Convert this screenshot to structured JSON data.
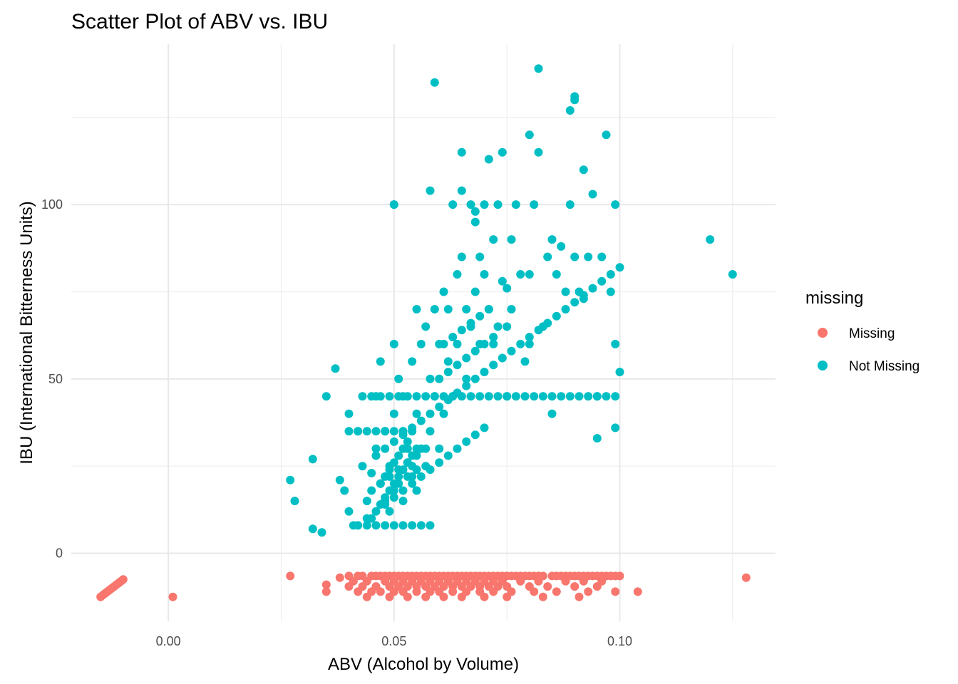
{
  "chart_data": {
    "type": "scatter",
    "title": "Scatter Plot of ABV vs. IBU",
    "xlabel": "ABV (Alcohol by Volume)",
    "ylabel": "IBU (International Bitterness Units)",
    "xlim": [
      -0.0215,
      0.1345
    ],
    "ylim": [
      -19.5,
      146
    ],
    "x_ticks": [
      0.0,
      0.05,
      0.1
    ],
    "x_tick_labels": [
      "0.00",
      "0.05",
      "0.10"
    ],
    "y_ticks": [
      0,
      50,
      100
    ],
    "y_tick_labels": [
      "0",
      "50",
      "100"
    ],
    "grid": true,
    "legend": {
      "title": "missing",
      "position": "right",
      "entries": [
        {
          "label": "Missing",
          "color": "#F8766D"
        },
        {
          "label": "Not Missing",
          "color": "#00BFC4"
        }
      ]
    },
    "series": [
      {
        "name": "Missing",
        "color": "#F8766D",
        "x": [
          0.001,
          0.027,
          0.104,
          0.128,
          -0.015,
          -0.0145,
          -0.014,
          -0.0135,
          -0.013,
          -0.0125,
          -0.012,
          -0.0115,
          -0.011,
          -0.0105,
          -0.01,
          0.035,
          0.035,
          0.038,
          0.04,
          0.042,
          0.043,
          0.045,
          0.046,
          0.047,
          0.048,
          0.049,
          0.05,
          0.051,
          0.052,
          0.053,
          0.054,
          0.055,
          0.056,
          0.057,
          0.058,
          0.059,
          0.06,
          0.061,
          0.062,
          0.063,
          0.064,
          0.065,
          0.066,
          0.067,
          0.068,
          0.069,
          0.07,
          0.071,
          0.072,
          0.073,
          0.074,
          0.075,
          0.076,
          0.077,
          0.078,
          0.079,
          0.08,
          0.081,
          0.082,
          0.083,
          0.085,
          0.086,
          0.087,
          0.088,
          0.089,
          0.09,
          0.091,
          0.092,
          0.093,
          0.094,
          0.095,
          0.096,
          0.097,
          0.098,
          0.099,
          0.1,
          0.041,
          0.044,
          0.048,
          0.05,
          0.052,
          0.054,
          0.056,
          0.058,
          0.06,
          0.062,
          0.064,
          0.066,
          0.068,
          0.07,
          0.072,
          0.074,
          0.078,
          0.082,
          0.088,
          0.092,
          0.096,
          0.04,
          0.043,
          0.046,
          0.049,
          0.051,
          0.053,
          0.055,
          0.057,
          0.059,
          0.061,
          0.063,
          0.065,
          0.067,
          0.069,
          0.071,
          0.073,
          0.075,
          0.08,
          0.084,
          0.09,
          0.095,
          0.042,
          0.045,
          0.047,
          0.05,
          0.052,
          0.055,
          0.058,
          0.06,
          0.063,
          0.066,
          0.069,
          0.072,
          0.076,
          0.081,
          0.086,
          0.093,
          0.099,
          0.044,
          0.049,
          0.053,
          0.057,
          0.061,
          0.065,
          0.07,
          0.075,
          0.083,
          0.091
        ],
        "y": [
          -12.5,
          -6.5,
          -11,
          -7,
          -12.5,
          -12,
          -11.5,
          -11,
          -10.5,
          -10,
          -9.5,
          -9,
          -8.5,
          -8,
          -7.5,
          -9,
          -11,
          -7,
          -6.5,
          -6.5,
          -6.5,
          -6.5,
          -6.5,
          -6.5,
          -6.5,
          -6.5,
          -6.5,
          -6.5,
          -6.5,
          -6.5,
          -6.5,
          -6.5,
          -6.5,
          -6.5,
          -6.5,
          -6.5,
          -6.5,
          -6.5,
          -6.5,
          -6.5,
          -6.5,
          -6.5,
          -6.5,
          -6.5,
          -6.5,
          -6.5,
          -6.5,
          -6.5,
          -6.5,
          -6.5,
          -6.5,
          -6.5,
          -6.5,
          -6.5,
          -6.5,
          -6.5,
          -6.5,
          -6.5,
          -6.5,
          -6.5,
          -6.5,
          -6.5,
          -6.5,
          -6.5,
          -6.5,
          -6.5,
          -6.5,
          -6.5,
          -6.5,
          -6.5,
          -6.5,
          -6.5,
          -6.5,
          -6.5,
          -6.5,
          -6.5,
          -8,
          -8,
          -8,
          -8,
          -8,
          -8,
          -8,
          -8,
          -8,
          -8,
          -8,
          -8,
          -8,
          -8,
          -8,
          -8,
          -8,
          -8,
          -8,
          -8,
          -8,
          -9.5,
          -9.5,
          -9.5,
          -9.5,
          -9.5,
          -9.5,
          -9.5,
          -9.5,
          -9.5,
          -9.5,
          -9.5,
          -9.5,
          -9.5,
          -9.5,
          -9.5,
          -9.5,
          -9.5,
          -9.5,
          -9.5,
          -9.5,
          -9.5,
          -11,
          -11,
          -11,
          -11,
          -11,
          -11,
          -11,
          -11,
          -11,
          -11,
          -11,
          -11,
          -11,
          -11,
          -11,
          -11,
          -11,
          -12.5,
          -12.5,
          -12.5,
          -12.5,
          -12.5,
          -12.5,
          -12.5,
          -12.5,
          -12.5,
          -12.5
        ]
      },
      {
        "name": "Not Missing",
        "color": "#00BFC4",
        "x": [
          0.027,
          0.028,
          0.032,
          0.032,
          0.034,
          0.035,
          0.037,
          0.038,
          0.039,
          0.04,
          0.04,
          0.041,
          0.042,
          0.043,
          0.044,
          0.045,
          0.045,
          0.046,
          0.046,
          0.047,
          0.047,
          0.048,
          0.048,
          0.049,
          0.049,
          0.05,
          0.05,
          0.05,
          0.05,
          0.051,
          0.051,
          0.052,
          0.052,
          0.052,
          0.053,
          0.053,
          0.054,
          0.054,
          0.055,
          0.055,
          0.055,
          0.056,
          0.056,
          0.057,
          0.057,
          0.058,
          0.058,
          0.059,
          0.059,
          0.06,
          0.06,
          0.061,
          0.061,
          0.062,
          0.062,
          0.063,
          0.063,
          0.064,
          0.064,
          0.065,
          0.065,
          0.066,
          0.066,
          0.067,
          0.067,
          0.068,
          0.068,
          0.069,
          0.069,
          0.07,
          0.07,
          0.071,
          0.071,
          0.072,
          0.072,
          0.073,
          0.073,
          0.074,
          0.074,
          0.075,
          0.075,
          0.076,
          0.076,
          0.077,
          0.078,
          0.079,
          0.08,
          0.08,
          0.081,
          0.082,
          0.083,
          0.084,
          0.085,
          0.086,
          0.087,
          0.088,
          0.089,
          0.09,
          0.09,
          0.091,
          0.092,
          0.092,
          0.093,
          0.094,
          0.095,
          0.096,
          0.097,
          0.098,
          0.099,
          0.099,
          0.1,
          0.12,
          0.125,
          0.059,
          0.082,
          0.089,
          0.09,
          0.05,
          0.058,
          0.065,
          0.068,
          0.075,
          0.08,
          0.085,
          0.095,
          0.099,
          0.047,
          0.048,
          0.049,
          0.05,
          0.051,
          0.052,
          0.053,
          0.054,
          0.055,
          0.047,
          0.048,
          0.049,
          0.05,
          0.051,
          0.052,
          0.053,
          0.054,
          0.055,
          0.046,
          0.048,
          0.05,
          0.052,
          0.054,
          0.056,
          0.045,
          0.047,
          0.049,
          0.051,
          0.053,
          0.055,
          0.057,
          0.044,
          0.046,
          0.048,
          0.05,
          0.052,
          0.054,
          0.056,
          0.058,
          0.06,
          0.062,
          0.064,
          0.066,
          0.068,
          0.07,
          0.061,
          0.063,
          0.065,
          0.067,
          0.069,
          0.071,
          0.06,
          0.062,
          0.064,
          0.066,
          0.068,
          0.07,
          0.072,
          0.058,
          0.06,
          0.062,
          0.064,
          0.066,
          0.068,
          0.07,
          0.072,
          0.074,
          0.076,
          0.078,
          0.08,
          0.082,
          0.084,
          0.086,
          0.088,
          0.09,
          0.092,
          0.094,
          0.096,
          0.098,
          0.1,
          0.042,
          0.044,
          0.046,
          0.048,
          0.05,
          0.052,
          0.054,
          0.056,
          0.058,
          0.04,
          0.042,
          0.044,
          0.046,
          0.048,
          0.05,
          0.052,
          0.054,
          0.043,
          0.045,
          0.047,
          0.049,
          0.051,
          0.053,
          0.055,
          0.057,
          0.059,
          0.061,
          0.063,
          0.065,
          0.067,
          0.069,
          0.071,
          0.073,
          0.075,
          0.077,
          0.079,
          0.081,
          0.083,
          0.085,
          0.087,
          0.089,
          0.091,
          0.093,
          0.095,
          0.097,
          0.099
        ],
        "y": [
          21,
          15,
          27,
          7,
          6,
          45,
          53,
          21,
          18,
          12,
          40,
          8,
          35,
          25,
          15,
          23,
          10,
          30,
          45,
          55,
          20,
          35,
          15,
          25,
          12,
          100,
          60,
          40,
          18,
          50,
          20,
          35,
          15,
          45,
          30,
          22,
          55,
          25,
          40,
          18,
          70,
          60,
          30,
          25,
          65,
          50,
          35,
          70,
          45,
          60,
          30,
          75,
          40,
          55,
          70,
          100,
          45,
          80,
          60,
          115,
          85,
          70,
          50,
          100,
          65,
          95,
          75,
          85,
          60,
          100,
          80,
          113,
          70,
          90,
          60,
          100,
          65,
          115,
          78,
          65,
          45,
          90,
          70,
          100,
          80,
          55,
          120,
          80,
          100,
          115,
          65,
          85,
          90,
          80,
          88,
          75,
          100,
          130,
          85,
          75,
          110,
          73,
          85,
          103,
          45,
          85,
          120,
          75,
          100,
          60,
          52,
          90,
          80,
          135,
          139,
          127,
          131,
          100,
          104,
          104,
          98,
          76,
          60,
          40,
          33,
          36,
          20,
          22,
          24,
          26,
          28,
          30,
          32,
          22,
          24,
          14,
          16,
          18,
          20,
          22,
          24,
          26,
          28,
          30,
          28,
          30,
          32,
          34,
          36,
          38,
          18,
          20,
          22,
          24,
          26,
          28,
          30,
          10,
          12,
          14,
          16,
          18,
          20,
          22,
          24,
          26,
          28,
          30,
          32,
          34,
          36,
          60,
          62,
          64,
          66,
          68,
          70,
          50,
          52,
          54,
          56,
          58,
          60,
          62,
          40,
          42,
          44,
          46,
          48,
          50,
          52,
          54,
          56,
          58,
          60,
          62,
          64,
          66,
          68,
          70,
          72,
          74,
          76,
          78,
          80,
          82,
          8,
          8,
          8,
          8,
          8,
          8,
          8,
          8,
          8,
          35,
          35,
          35,
          35,
          35,
          35,
          35,
          35,
          45,
          45,
          45,
          45,
          45,
          45,
          45,
          45,
          45,
          45,
          45,
          45,
          45,
          45,
          45,
          45,
          45,
          45,
          45,
          45,
          45,
          45,
          45,
          45,
          45,
          45,
          45,
          45,
          45
        ]
      }
    ]
  }
}
